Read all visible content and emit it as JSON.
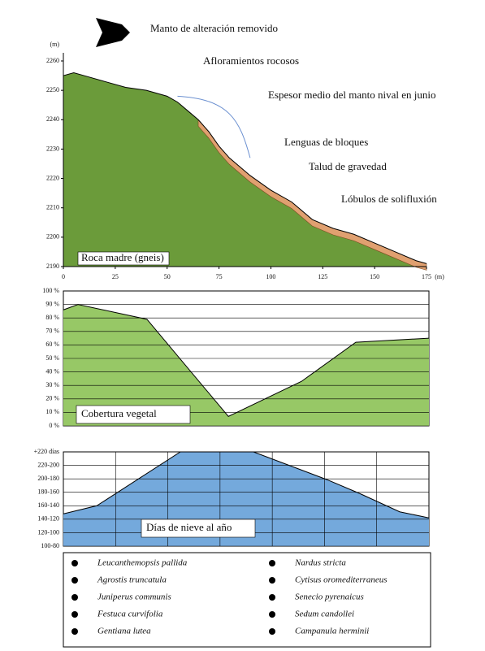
{
  "chart_data": [
    {
      "type": "profile",
      "annotations": [
        "Manto de alteración removido",
        "Afloramientos rocosos",
        "Espesor medio del manto nival en junio",
        "Lenguas de bloques",
        "Talud de gravedad",
        "Lóbulos de solifluxión",
        "Roca madre (gneis)"
      ],
      "x": [
        0,
        5,
        10,
        20,
        30,
        40,
        50,
        55,
        60,
        65,
        70,
        75,
        80,
        90,
        100,
        110,
        120,
        130,
        140,
        150,
        160,
        170,
        175
      ],
      "values": [
        2255,
        2256,
        2255,
        2253,
        2251,
        2250,
        2248,
        2246,
        2243,
        2240,
        2236,
        2231,
        2227,
        2221,
        2216,
        2212,
        2206,
        2203,
        2201,
        2198,
        2195,
        2192,
        2191
      ],
      "color": "#6b9b3a",
      "xlim": [
        0,
        175
      ],
      "xticks": [
        0,
        25,
        50,
        75,
        100,
        125,
        150,
        175
      ],
      "x_unit": "(m)",
      "ylim": [
        2190,
        2260
      ],
      "yticks": [
        2190,
        2200,
        2210,
        2220,
        2230,
        2240,
        2250,
        2260
      ],
      "y_unit": "(m)"
    },
    {
      "type": "area",
      "label": "Cobertura vegetal",
      "x": [
        0,
        7,
        40,
        79,
        114,
        140,
        175
      ],
      "values": [
        86,
        90,
        79,
        7,
        33,
        62,
        65
      ],
      "color": "#97c866",
      "xlim": [
        0,
        175
      ],
      "ylim": [
        0,
        100
      ],
      "yticks": [
        {
          "value": 0,
          "label": "0 %"
        },
        {
          "value": 10,
          "label": "10 %"
        },
        {
          "value": 20,
          "label": "20 %"
        },
        {
          "value": 30,
          "label": "30 %"
        },
        {
          "value": 40,
          "label": "40 %"
        },
        {
          "value": 50,
          "label": "50 %"
        },
        {
          "value": 60,
          "label": "60 %"
        },
        {
          "value": 70,
          "label": "70 %"
        },
        {
          "value": 80,
          "label": "80 %"
        },
        {
          "value": 90,
          "label": "90 %"
        },
        {
          "value": 100,
          "label": "100 %"
        }
      ],
      "grid": true
    },
    {
      "type": "area",
      "label": "Días de nieve al año",
      "x": [
        0,
        16,
        56,
        91,
        126,
        142,
        161,
        175
      ],
      "values": [
        138,
        150,
        230,
        230,
        189,
        168,
        141,
        132
      ],
      "color": "#74a9dc",
      "xlim": [
        0,
        175
      ],
      "xgrid": [
        25,
        50,
        75,
        100,
        125,
        150
      ],
      "ylim": [
        90,
        230
      ],
      "yticks": [
        {
          "value": 90,
          "label": "100-80"
        },
        {
          "value": 110,
          "label": "120-100"
        },
        {
          "value": 130,
          "label": "140-120"
        },
        {
          "value": 150,
          "label": "160-140"
        },
        {
          "value": 170,
          "label": "180-160"
        },
        {
          "value": 190,
          "label": "200-180"
        },
        {
          "value": 210,
          "label": "220-200"
        },
        {
          "value": 230,
          "label": "+220 días"
        }
      ],
      "grid": true
    }
  ],
  "legend": {
    "items": [
      "Leucanthemopsis pallida",
      "Agrostis truncatula",
      "Juniperus communis",
      "Festuca curvifolia",
      "Gentiana lutea",
      "Nardus stricta",
      "Cytisus oromediterraneus",
      "Senecio pyrenaicus",
      "Sedum candollei",
      "Campanula herminii"
    ]
  }
}
